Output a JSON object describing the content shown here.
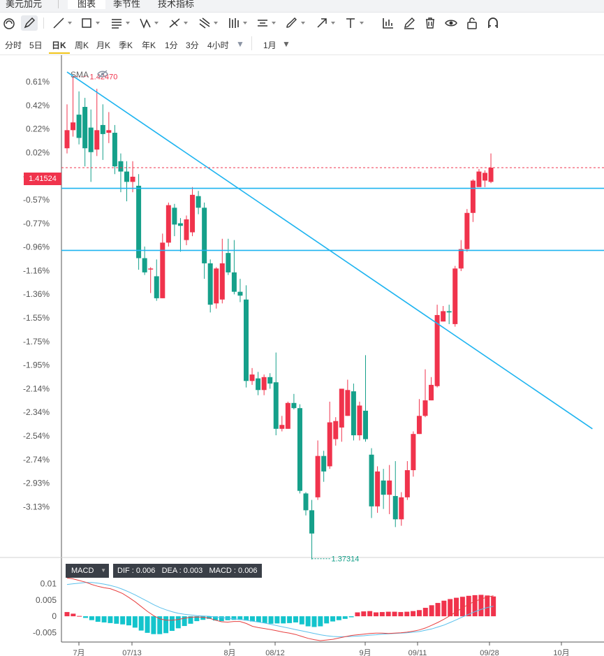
{
  "tabs": [
    {
      "label": "美元加元",
      "active": false
    },
    {
      "label": "图表",
      "active": true
    },
    {
      "label": "季节性",
      "active": false
    },
    {
      "label": "技术指标",
      "active": false
    }
  ],
  "toolbar_icons": [
    "magnet-icon",
    "pencil-icon",
    "line-icon",
    "rectangle-icon",
    "horizontal-lines-icon",
    "pattern-icon",
    "trend-line-icon",
    "fork-icon",
    "bars-icon",
    "channel-icon",
    "brush-icon",
    "arrow-icon",
    "text-icon",
    "measure-icon",
    "edit-icon",
    "trash-icon",
    "eye-icon",
    "lock-icon",
    "magnet-u-icon"
  ],
  "periods": [
    "分时",
    "5日",
    "日K",
    "周K",
    "月K",
    "季K",
    "年K",
    "1分",
    "3分",
    "4小时",
    "1月"
  ],
  "active_period": "日K",
  "colors": {
    "up": "#f0334c",
    "down": "#15a08a",
    "trendline": "#1eb4f0",
    "macd_fast": "#e84040",
    "macd_slow": "#5bc0eb",
    "axis_text": "#555555"
  },
  "indicator_label": "SMA",
  "price_axis": [
    "0.61%",
    "0.42%",
    "0.22%",
    "0.02%",
    "-0.37%",
    "-0.57%",
    "-0.77%",
    "-0.96%",
    "-1.16%",
    "-1.36%",
    "-1.55%",
    "-1.75%",
    "-1.95%",
    "-2.14%",
    "-2.34%",
    "-2.54%",
    "-2.74%",
    "-2.93%",
    "-3.13%"
  ],
  "current_price": "1.41524",
  "high_annotation": "1.42470",
  "low_annotation": "1.37314",
  "macd": {
    "label": "MACD",
    "readout": "DIF : 0.006   DEA : 0.003   MACD : 0.006",
    "axis": [
      "0.01",
      "0.005",
      "0",
      "-0.005"
    ]
  },
  "x_axis": [
    "7月",
    "07/13",
    "8月",
    "08/12",
    "9月",
    "09/11",
    "09/28",
    "10月"
  ],
  "chart_data": {
    "type": "candlestick",
    "ylabel": "",
    "ylim_pct": [
      -3.2,
      0.68
    ],
    "candles_pct": [
      [
        -0.04,
        0.1,
        -0.08,
        0.3
      ],
      [
        0.1,
        0.16,
        0.05,
        0.52
      ],
      [
        0.22,
        0.04,
        -0.01,
        0.4
      ],
      [
        0.28,
        -0.04,
        -0.18,
        0.35
      ],
      [
        0.12,
        -0.07,
        -0.3,
        0.26
      ],
      [
        -0.05,
        0.1,
        -0.1,
        0.42
      ],
      [
        0.14,
        0.07,
        -0.13,
        0.3
      ],
      [
        0.08,
        0.1,
        0.0,
        0.24
      ],
      [
        0.08,
        -0.18,
        -0.24,
        0.14
      ],
      [
        -0.14,
        -0.22,
        -0.38,
        -0.08
      ],
      [
        -0.22,
        -0.3,
        -0.45,
        -0.14
      ],
      [
        -0.3,
        -0.26,
        -0.38,
        -0.14
      ],
      [
        -0.33,
        -0.89,
        -0.98,
        -0.24
      ],
      [
        -0.89,
        -1.0,
        -1.02,
        -0.8
      ],
      [
        -0.97,
        -0.97,
        -1.16,
        -0.96
      ],
      [
        -1.03,
        -1.2,
        -1.22,
        -0.9
      ],
      [
        -1.2,
        -0.77,
        -1.2,
        -0.7
      ],
      [
        -0.77,
        -0.48,
        -0.8,
        -0.46
      ],
      [
        -0.5,
        -0.63,
        -0.72,
        -0.47
      ],
      [
        -0.62,
        -0.64,
        -0.84,
        -0.58
      ],
      [
        -0.75,
        -0.59,
        -0.79,
        -0.56
      ],
      [
        -0.69,
        -0.4,
        -0.72,
        -0.34
      ],
      [
        -0.41,
        -0.5,
        -0.55,
        -0.37
      ],
      [
        -0.5,
        -0.93,
        -1.05,
        -0.46
      ],
      [
        -0.93,
        -1.25,
        -1.31,
        -0.9
      ],
      [
        -1.24,
        -0.97,
        -1.28,
        -0.96
      ],
      [
        -1.21,
        -0.93,
        -1.24,
        -0.74
      ],
      [
        -0.85,
        -1.0,
        -1.02,
        -0.74
      ],
      [
        -1.0,
        -1.15,
        -1.17,
        -0.75
      ],
      [
        -1.15,
        -1.18,
        -1.23,
        -1.05
      ],
      [
        -1.21,
        -1.84,
        -1.89,
        -1.1
      ],
      [
        -1.84,
        -1.79,
        -1.87,
        -1.74
      ],
      [
        -1.82,
        -1.91,
        -1.95,
        -1.77
      ],
      [
        -1.91,
        -1.81,
        -1.95,
        -1.79
      ],
      [
        -1.81,
        -1.86,
        -1.9,
        -1.78
      ],
      [
        -1.85,
        -2.21,
        -2.26,
        -1.62
      ],
      [
        -2.21,
        -2.18,
        -2.23,
        -2.11
      ],
      [
        -2.21,
        -2.01,
        -2.21,
        -2.0
      ],
      [
        -2.01,
        -2.05,
        -2.06,
        -1.94
      ],
      [
        -2.05,
        -2.69,
        -2.71,
        -2.02
      ],
      [
        -2.71,
        -2.84,
        -2.88,
        -2.7
      ],
      [
        -2.84,
        -3.02,
        -3.22,
        -2.76
      ],
      [
        -2.74,
        -2.42,
        -2.76,
        -2.3
      ],
      [
        -2.42,
        -2.54,
        -2.62,
        -2.38
      ],
      [
        -2.5,
        -2.16,
        -2.52,
        -2.0
      ],
      [
        -2.29,
        -2.15,
        -2.34,
        -2.12
      ],
      [
        -2.2,
        -1.9,
        -2.31,
        -1.91
      ],
      [
        -2.11,
        -1.91,
        -2.11,
        -1.83
      ],
      [
        -1.92,
        -2.26,
        -2.3,
        -1.86
      ],
      [
        -2.26,
        -2.03,
        -2.3,
        -2.0
      ],
      [
        -2.07,
        -2.29,
        -2.31,
        -1.64
      ],
      [
        -2.41,
        -2.81,
        -2.9,
        -2.36
      ],
      [
        -2.81,
        -2.54,
        -2.86,
        -2.5
      ],
      [
        -2.61,
        -2.72,
        -2.83,
        -2.52
      ],
      [
        -2.72,
        -2.61,
        -2.87,
        -2.49
      ],
      [
        -2.73,
        -2.91,
        -2.97,
        -2.46
      ],
      [
        -2.91,
        -2.74,
        -2.96,
        -2.7
      ],
      [
        -2.74,
        -2.53,
        -2.76,
        -2.46
      ],
      [
        -2.53,
        -2.25,
        -2.58,
        -2.23
      ],
      [
        -2.25,
        -2.11,
        -2.25,
        -1.98
      ],
      [
        -2.11,
        -1.99,
        -2.12,
        -1.75
      ],
      [
        -1.99,
        -1.87,
        -1.99,
        -1.81
      ],
      [
        -1.88,
        -1.33,
        -1.89,
        -1.25
      ],
      [
        -1.38,
        -1.3,
        -1.38,
        -1.26
      ],
      [
        -1.3,
        -1.31,
        -1.4,
        -1.25
      ],
      [
        -1.4,
        -0.97,
        -1.42,
        -0.95
      ],
      [
        -0.97,
        -0.82,
        -0.99,
        -0.75
      ],
      [
        -0.82,
        -0.54,
        -0.84,
        -0.51
      ],
      [
        -0.54,
        -0.29,
        -0.61,
        -0.28
      ],
      [
        -0.34,
        -0.22,
        -0.33,
        -0.2
      ],
      [
        -0.29,
        -0.23,
        -0.34,
        -0.21
      ],
      [
        -0.3,
        -0.19,
        -0.31,
        -0.08
      ]
    ],
    "horizontal_lines_pct": [
      -0.35,
      -0.83
    ],
    "trendline_pct": [
      [
        0,
        0.55
      ],
      [
        88,
        -2.21
      ]
    ],
    "macd_series": {
      "histogram": [
        0.0013,
        0.0008,
        0.0001,
        -0.0005,
        -0.0012,
        -0.0017,
        -0.0019,
        -0.0021,
        -0.0023,
        -0.0025,
        -0.0028,
        -0.0035,
        -0.0044,
        -0.0051,
        -0.0055,
        -0.0055,
        -0.0052,
        -0.0045,
        -0.0037,
        -0.003,
        -0.0023,
        -0.0015,
        -0.0011,
        -0.0008,
        -0.0013,
        -0.0015,
        -0.0012,
        -0.0011,
        -0.0011,
        -0.0013,
        -0.0016,
        -0.0018,
        -0.0021,
        -0.0023,
        -0.0022,
        -0.0022,
        -0.0021,
        -0.0019,
        -0.0025,
        -0.0031,
        -0.0033,
        -0.0031,
        -0.0022,
        -0.0016,
        -0.0012,
        -0.0008,
        -0.0003,
        0.0012,
        0.0015,
        0.0016,
        0.0012,
        0.0013,
        0.0014,
        0.0014,
        0.0013,
        0.0014,
        0.0016,
        0.0019,
        0.0026,
        0.0034,
        0.0041,
        0.0048,
        0.0053,
        0.0057,
        0.006,
        0.0063,
        0.0065,
        0.0066,
        0.0064,
        0.0061
      ],
      "dif": [
        0.0118,
        0.0115,
        0.011,
        0.0105,
        0.0098,
        0.0092,
        0.0088,
        0.0085,
        0.0078,
        0.007,
        0.0058,
        0.0045,
        0.003,
        0.0015,
        0.0002,
        -0.0008,
        -0.0012,
        -0.0012,
        -0.001,
        -0.0006,
        -0.0003,
        -0.0002,
        -0.0003,
        -0.0006,
        -0.0012,
        -0.0017,
        -0.0018,
        -0.0016,
        -0.0016,
        -0.0022,
        -0.0031,
        -0.0035,
        -0.0038,
        -0.0041,
        -0.0045,
        -0.0049,
        -0.0052,
        -0.0056,
        -0.0062,
        -0.0068,
        -0.0072,
        -0.0075,
        -0.0073,
        -0.0071,
        -0.0067,
        -0.0063,
        -0.0059,
        -0.0057,
        -0.0055,
        -0.0053,
        -0.0052,
        -0.0052,
        -0.0053,
        -0.0052,
        -0.0051,
        -0.0049,
        -0.0046,
        -0.0042,
        -0.0036,
        -0.0028,
        -0.0019,
        -0.0009,
        0.0002,
        0.0014,
        0.0026,
        0.0037,
        0.0046,
        0.0053,
        0.0059,
        0.0063
      ],
      "dea": [
        0.0098,
        0.01,
        0.0102,
        0.0104,
        0.0104,
        0.0102,
        0.0099,
        0.0095,
        0.009,
        0.0083,
        0.0075,
        0.0066,
        0.0056,
        0.0046,
        0.0036,
        0.0027,
        0.002,
        0.0014,
        0.0009,
        0.0006,
        0.0004,
        0.0002,
        0.0001,
        0.0,
        -0.0002,
        -0.0004,
        -0.0006,
        -0.0008,
        -0.001,
        -0.0012,
        -0.0015,
        -0.0018,
        -0.0021,
        -0.0025,
        -0.0029,
        -0.0033,
        -0.0037,
        -0.0041,
        -0.0045,
        -0.0049,
        -0.0053,
        -0.0057,
        -0.006,
        -0.0062,
        -0.0063,
        -0.0063,
        -0.0062,
        -0.0061,
        -0.006,
        -0.0058,
        -0.0057,
        -0.0055,
        -0.0054,
        -0.0053,
        -0.0052,
        -0.0051,
        -0.0049,
        -0.0047,
        -0.0043,
        -0.0039,
        -0.0033,
        -0.0027,
        -0.0019,
        -0.0011,
        -0.0002,
        0.0006,
        0.0014,
        0.0021,
        0.0027,
        0.0031
      ]
    }
  }
}
